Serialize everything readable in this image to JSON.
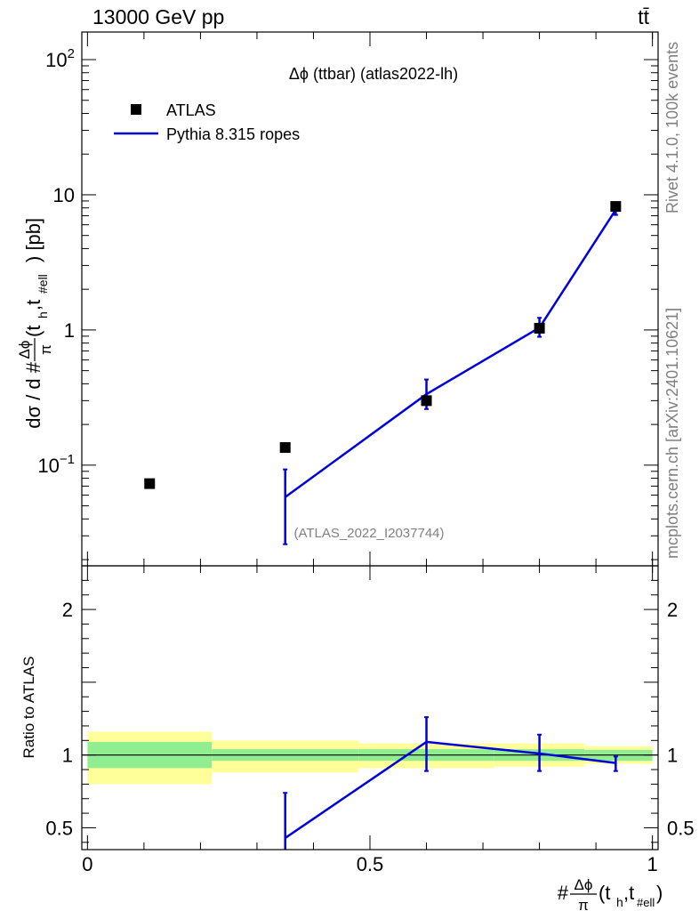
{
  "header": {
    "left_title": "13000 GeV pp",
    "right_title": "tt̄"
  },
  "side_text": {
    "top": "Rivet 4.1.0,  100k events",
    "bottom": "mcplots.cern.ch [arXiv:2401.10621]"
  },
  "chart_data": [
    {
      "type": "scatter",
      "panel": "main",
      "title": "Δϕ (ttbar) (atlas2022-lh)",
      "watermark": "(ATLAS_2022_I2037744)",
      "ylabel": "dσ / d #Δϕ/π(t_h,t_#ell) [pb]",
      "ylabel_parts": {
        "prefix": "dσ / d #",
        "frac_num": "Δϕ",
        "frac_den": "π",
        "args": "(t",
        "sub1": "h",
        "comma": ",t",
        "sub2": "#ell",
        "unit": ") [pb]"
      },
      "yscale": "log",
      "ylim": [
        0.018,
        160
      ],
      "xlim": [
        -0.01,
        1.01
      ],
      "yticks": [
        {
          "v": 0.1,
          "base": "10",
          "exp": "−1"
        },
        {
          "v": 1,
          "label": "1"
        },
        {
          "v": 10,
          "label": "10"
        },
        {
          "v": 100,
          "base": "10",
          "exp": "2"
        }
      ],
      "legend": {
        "position": "top-left",
        "entries": [
          {
            "label": "ATLAS",
            "style": "marker"
          },
          {
            "label": "Pythia 8.315 ropes",
            "style": "line",
            "color": "#0000dd"
          }
        ]
      },
      "series": [
        {
          "name": "ATLAS",
          "marker": "square",
          "color": "#000000",
          "points": [
            {
              "x": 0.11,
              "y": 0.073
            },
            {
              "x": 0.35,
              "y": 0.135
            },
            {
              "x": 0.6,
              "y": 0.3
            },
            {
              "x": 0.8,
              "y": 1.03
            },
            {
              "x": 0.935,
              "y": 8.2
            }
          ]
        },
        {
          "name": "Pythia 8.315 ropes",
          "color": "#0000dd",
          "points": [
            {
              "x": 0.35,
              "y": 0.058,
              "ylo": 0.026,
              "yhi": 0.093
            },
            {
              "x": 0.6,
              "y": 0.335,
              "ylo": 0.26,
              "yhi": 0.43
            },
            {
              "x": 0.8,
              "y": 1.04,
              "ylo": 0.89,
              "yhi": 1.23
            },
            {
              "x": 0.935,
              "y": 7.75,
              "ylo": 7.1,
              "yhi": 8.4
            }
          ]
        }
      ]
    },
    {
      "type": "line",
      "panel": "ratio",
      "ylabel": "Ratio to ATLAS",
      "xlabel": "#Δϕ/π(t_h,t_#ell)",
      "xlabel_parts": {
        "prefix": "#",
        "frac_num": "Δϕ",
        "frac_den": "π",
        "args": "(t",
        "sub1": "h",
        "comma": ",t",
        "sub2": "#ell",
        "close": ")"
      },
      "ylim": [
        0.35,
        2.3
      ],
      "xlim": [
        -0.01,
        1.01
      ],
      "xticks": [
        {
          "v": 0,
          "label": "0"
        },
        {
          "v": 0.5,
          "label": "0.5"
        },
        {
          "v": 1,
          "label": "1"
        }
      ],
      "yticks": [
        {
          "v": 0.5,
          "label": "0.5"
        },
        {
          "v": 1,
          "label": "1"
        },
        {
          "v": 2,
          "label": "2"
        }
      ],
      "uncertainty_bands": [
        {
          "x0": 0.0,
          "x1": 0.22,
          "inner": [
            0.91,
            1.09
          ],
          "outer": [
            0.8,
            1.16
          ]
        },
        {
          "x0": 0.22,
          "x1": 0.48,
          "inner": [
            0.96,
            1.04
          ],
          "outer": [
            0.88,
            1.1
          ]
        },
        {
          "x0": 0.48,
          "x1": 0.72,
          "inner": [
            0.96,
            1.04
          ],
          "outer": [
            0.91,
            1.08
          ]
        },
        {
          "x0": 0.72,
          "x1": 0.88,
          "inner": [
            0.96,
            1.04
          ],
          "outer": [
            0.92,
            1.08
          ]
        },
        {
          "x0": 0.88,
          "x1": 1.0,
          "inner": [
            0.96,
            1.035
          ],
          "outer": [
            0.94,
            1.06
          ]
        }
      ],
      "band_colors": {
        "inner": "#90ee90",
        "outer": "#ffff99"
      },
      "series": [
        {
          "name": "Pythia 8.315 ropes",
          "color": "#0000dd",
          "points": [
            {
              "x": 0.35,
              "y": 0.43,
              "ylo": 0.35,
              "yhi": 0.74
            },
            {
              "x": 0.6,
              "y": 1.09,
              "ylo": 0.89,
              "yhi": 1.26
            },
            {
              "x": 0.8,
              "y": 1.01,
              "ylo": 0.89,
              "yhi": 1.14
            },
            {
              "x": 0.935,
              "y": 0.945,
              "ylo": 0.89,
              "yhi": 0.99
            }
          ]
        }
      ]
    }
  ]
}
